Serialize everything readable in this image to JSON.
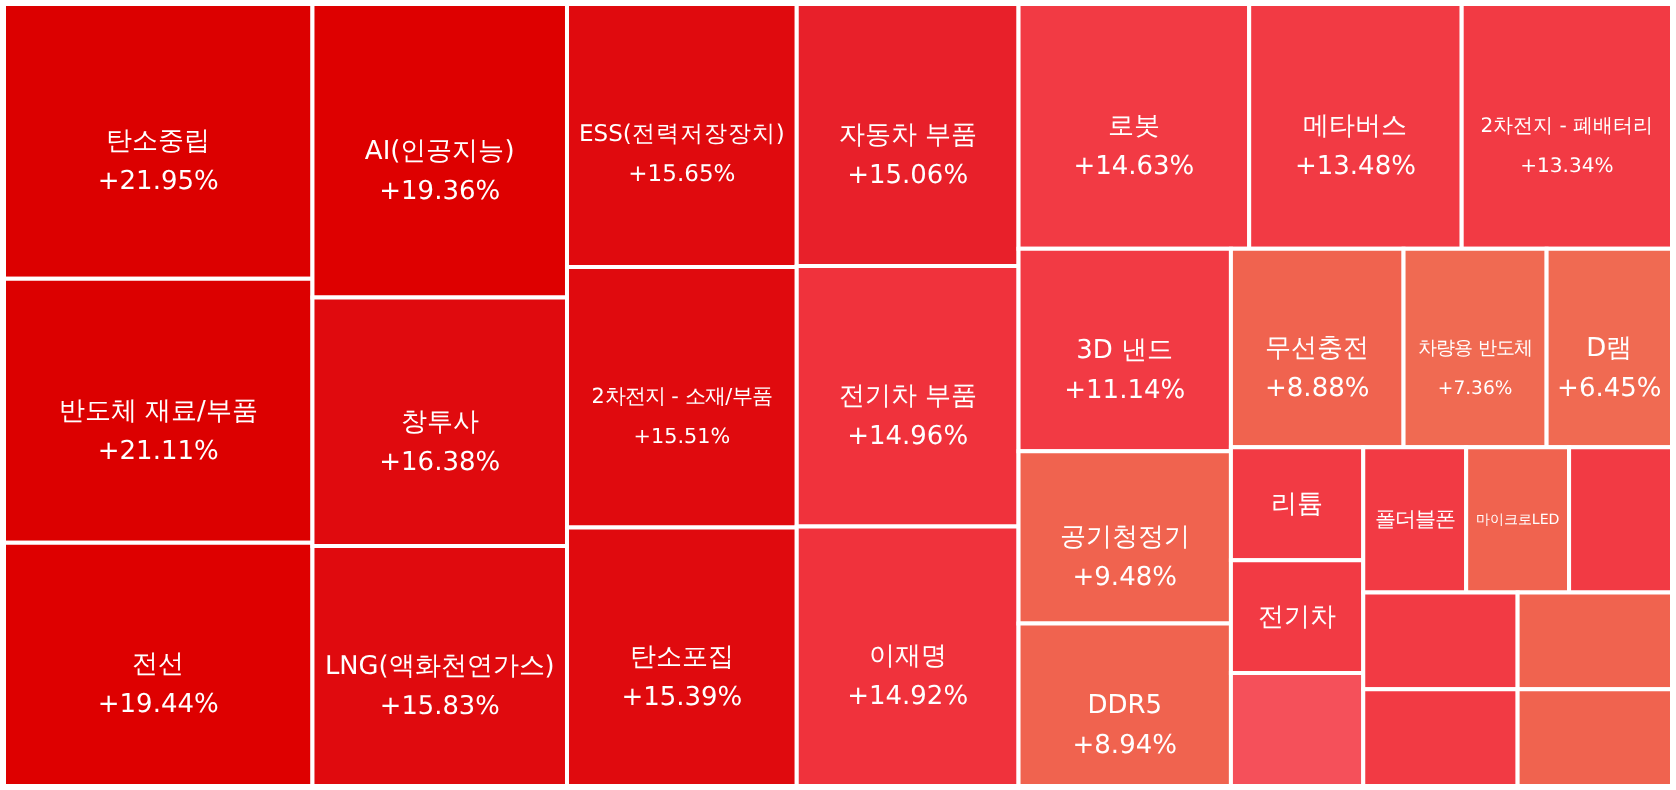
{
  "chart_data": {
    "type": "other",
    "categories": [
      "탄소중립",
      "반도체 재료/부품",
      "전선",
      "AI(인공지능)",
      "창투사",
      "LNG(액화천연가스)",
      "ESS(전력저장장치)",
      "2차전지 - 소재/부품",
      "탄소포집",
      "자동차 부품",
      "전기차 부품",
      "이재명",
      "로봇",
      "메타버스",
      "2차전지 - 폐배터리",
      "리튬",
      "전기차",
      null,
      "3D 낸드",
      "폴더블폰",
      "공기청정기",
      "DDR5",
      "무선충전",
      "마이크로LED",
      "차량용 반도체",
      "D램",
      null,
      null,
      null,
      null,
      null
    ],
    "values": [
      21.95,
      21.11,
      19.44,
      19.36,
      16.38,
      15.83,
      15.65,
      15.51,
      15.39,
      15.06,
      14.96,
      14.92,
      14.63,
      13.48,
      13.34,
      null,
      null,
      null,
      11.14,
      null,
      9.48,
      8.94,
      8.88,
      null,
      7.36,
      6.45,
      null,
      null,
      null,
      null,
      null
    ],
    "value_labels": [
      "+21.95%",
      "+21.11%",
      "+19.44%",
      "+19.36%",
      "+16.38%",
      "+15.83%",
      "+15.65%",
      "+15.51%",
      "+15.39%",
      "+15.06%",
      "+14.96%",
      "+14.92%",
      "+14.63%",
      "+13.48%",
      "+13.34%",
      null,
      null,
      null,
      "+11.14%",
      null,
      "+9.48%",
      "+8.94%",
      "+8.88%",
      null,
      "+7.36%",
      "+6.45%",
      null,
      null,
      null,
      null,
      null
    ],
    "colors": [
      "#dc0000",
      "#dc0000",
      "#de0000",
      "#de0000",
      "#e00a0e",
      "#e00a0e",
      "#e00a0e",
      "#e00a0e",
      "#e00a0e",
      "#e8202a",
      "#f0323c",
      "#f0323c",
      "#f23a44",
      "#f23a44",
      "#f23a44",
      "#f23a44",
      "#f23a44",
      "#f5505a",
      "#f23a44",
      "#f23a44",
      "#f0634f",
      "#f0634f",
      "#f0634f",
      "#f0634f",
      "#f06a52",
      "#f06a52",
      "#f23a44",
      "#f23a44",
      "#f23a44",
      "#f0634f",
      "#f0634f"
    ]
  }
}
